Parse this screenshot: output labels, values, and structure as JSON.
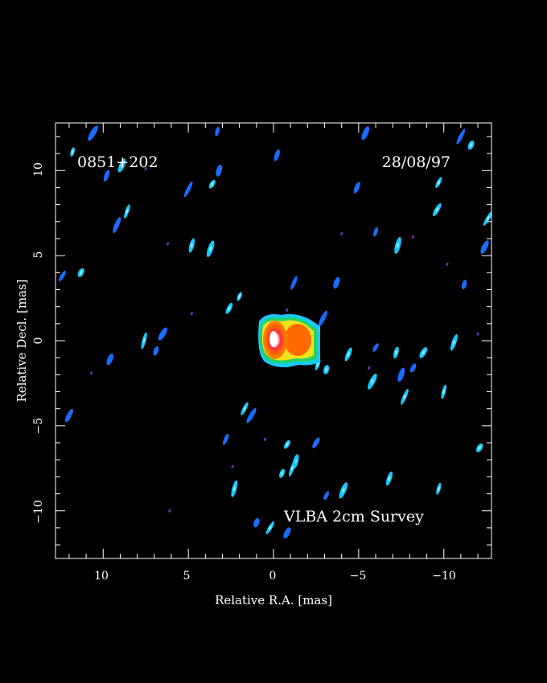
{
  "plot": {
    "source_name": "0851+202",
    "date": "28/08/97",
    "survey_label": "VLBA 2cm Survey",
    "xlabel": "Relative R.A. [mas]",
    "ylabel": "Relative Decl. [mas]",
    "x_range": [
      12.8,
      -12.8
    ],
    "y_range": [
      -12.8,
      12.8
    ],
    "x_ticks": [
      {
        "value": 10,
        "label": "10"
      },
      {
        "value": 5,
        "label": "5"
      },
      {
        "value": 0,
        "label": "0"
      },
      {
        "value": -5,
        "label": "−5"
      },
      {
        "value": -10,
        "label": "−10"
      }
    ],
    "y_ticks": [
      {
        "value": 10,
        "label": "10"
      },
      {
        "value": 5,
        "label": "5"
      },
      {
        "value": 0,
        "label": "0"
      },
      {
        "value": -5,
        "label": "−5"
      },
      {
        "value": -10,
        "label": "−10"
      }
    ],
    "colors": {
      "background": "#000000",
      "frame": "#ffffff",
      "noise_blue": "#1a6cff",
      "noise_cyan": "#19c8ff",
      "noise_purple": "#7a2cc8",
      "core_green": "#22d36a",
      "core_yellow": "#f5e21c",
      "core_orange": "#ff6a00",
      "core_white": "#ffffff"
    },
    "noise_blobs": [
      {
        "x": 11.8,
        "y": 11.1,
        "c": "cyan"
      },
      {
        "x": 9.8,
        "y": 9.7,
        "c": "blue"
      },
      {
        "x": 8.9,
        "y": 10.3,
        "c": "cyan"
      },
      {
        "x": 5.0,
        "y": 8.9,
        "c": "blue"
      },
      {
        "x": 3.6,
        "y": 9.2,
        "c": "cyan"
      },
      {
        "x": 3.2,
        "y": 10.0,
        "c": "blue"
      },
      {
        "x": 8.6,
        "y": 7.6,
        "c": "cyan"
      },
      {
        "x": 9.2,
        "y": 6.8,
        "c": "blue"
      },
      {
        "x": 11.3,
        "y": 4.0,
        "c": "cyan"
      },
      {
        "x": 12.4,
        "y": 3.8,
        "c": "blue"
      },
      {
        "x": 4.8,
        "y": 5.6,
        "c": "cyan"
      },
      {
        "x": 3.7,
        "y": 5.4,
        "c": "cyan"
      },
      {
        "x": 2.0,
        "y": 2.6,
        "c": "cyan"
      },
      {
        "x": 2.6,
        "y": 1.9,
        "c": "cyan"
      },
      {
        "x": 6.5,
        "y": 0.4,
        "c": "blue"
      },
      {
        "x": 7.6,
        "y": 0.0,
        "c": "cyan"
      },
      {
        "x": 6.9,
        "y": -0.6,
        "c": "blue"
      },
      {
        "x": 9.6,
        "y": -1.1,
        "c": "blue"
      },
      {
        "x": 1.7,
        "y": -4.0,
        "c": "cyan"
      },
      {
        "x": 1.3,
        "y": -4.4,
        "c": "blue"
      },
      {
        "x": -3.1,
        "y": -1.7,
        "c": "cyan"
      },
      {
        "x": -2.6,
        "y": -1.4,
        "c": "cyan"
      },
      {
        "x": -4.4,
        "y": -0.8,
        "c": "cyan"
      },
      {
        "x": -5.8,
        "y": -2.4,
        "c": "cyan"
      },
      {
        "x": -6.0,
        "y": -0.4,
        "c": "blue"
      },
      {
        "x": -7.2,
        "y": -0.7,
        "c": "cyan"
      },
      {
        "x": -7.5,
        "y": -2.0,
        "c": "blue"
      },
      {
        "x": -7.7,
        "y": -3.3,
        "c": "cyan"
      },
      {
        "x": -8.2,
        "y": -1.6,
        "c": "blue"
      },
      {
        "x": -8.8,
        "y": -0.7,
        "c": "cyan"
      },
      {
        "x": -10.0,
        "y": -3.0,
        "c": "cyan"
      },
      {
        "x": -10.6,
        "y": -0.1,
        "c": "cyan"
      },
      {
        "x": -11.6,
        "y": 11.5,
        "c": "cyan"
      },
      {
        "x": -9.7,
        "y": 9.3,
        "c": "cyan"
      },
      {
        "x": -9.6,
        "y": 7.7,
        "c": "cyan"
      },
      {
        "x": -7.3,
        "y": 5.6,
        "c": "cyan"
      },
      {
        "x": -6.0,
        "y": 6.4,
        "c": "blue"
      },
      {
        "x": -4.9,
        "y": 9.0,
        "c": "blue"
      },
      {
        "x": -12.4,
        "y": 5.5,
        "c": "blue"
      },
      {
        "x": -12.6,
        "y": 7.2,
        "c": "cyan"
      },
      {
        "x": -11.2,
        "y": 3.3,
        "c": "blue"
      },
      {
        "x": -3.7,
        "y": 3.4,
        "c": "blue"
      },
      {
        "x": -1.2,
        "y": 3.4,
        "c": "blue"
      },
      {
        "x": -2.9,
        "y": 1.3,
        "c": "blue"
      },
      {
        "x": -12.1,
        "y": -6.3,
        "c": "cyan"
      },
      {
        "x": -9.7,
        "y": -8.7,
        "c": "cyan"
      },
      {
        "x": -6.8,
        "y": -8.1,
        "c": "cyan"
      },
      {
        "x": -4.1,
        "y": -8.8,
        "c": "cyan"
      },
      {
        "x": -3.1,
        "y": -9.1,
        "c": "blue"
      },
      {
        "x": -2.5,
        "y": -6.0,
        "c": "blue"
      },
      {
        "x": -1.3,
        "y": -7.1,
        "c": "cyan"
      },
      {
        "x": -1.1,
        "y": -7.5,
        "c": "cyan"
      },
      {
        "x": -0.5,
        "y": -7.8,
        "c": "cyan"
      },
      {
        "x": -0.8,
        "y": -11.3,
        "c": "blue"
      },
      {
        "x": 0.2,
        "y": -11.0,
        "c": "cyan"
      },
      {
        "x": 2.3,
        "y": -8.7,
        "c": "cyan"
      },
      {
        "x": 1.0,
        "y": -10.7,
        "c": "blue"
      },
      {
        "x": 2.8,
        "y": -5.8,
        "c": "blue"
      },
      {
        "x": 12.0,
        "y": -4.4,
        "c": "blue"
      },
      {
        "x": 10.6,
        "y": 12.2,
        "c": "blue"
      },
      {
        "x": 3.3,
        "y": 12.3,
        "c": "blue"
      },
      {
        "x": -0.2,
        "y": 10.9,
        "c": "blue"
      },
      {
        "x": -5.4,
        "y": 12.2,
        "c": "blue"
      },
      {
        "x": -11.0,
        "y": 12.0,
        "c": "blue"
      },
      {
        "x": -0.8,
        "y": -6.1,
        "c": "cyan"
      },
      {
        "x": 0.5,
        "y": -5.8,
        "c": "purple"
      },
      {
        "x": 7.5,
        "y": 10.1,
        "c": "purple"
      },
      {
        "x": 6.2,
        "y": 5.7,
        "c": "purple"
      },
      {
        "x": 10.7,
        "y": -1.9,
        "c": "purple"
      },
      {
        "x": 4.8,
        "y": 1.6,
        "c": "purple"
      },
      {
        "x": -5.6,
        "y": -1.6,
        "c": "purple"
      },
      {
        "x": -8.2,
        "y": 6.1,
        "c": "purple"
      },
      {
        "x": -10.2,
        "y": 4.5,
        "c": "purple"
      },
      {
        "x": -4.0,
        "y": 6.3,
        "c": "purple"
      },
      {
        "x": 2.4,
        "y": -7.4,
        "c": "purple"
      },
      {
        "x": -12.0,
        "y": 0.4,
        "c": "purple"
      },
      {
        "x": 6.1,
        "y": -10.0,
        "c": "purple"
      },
      {
        "x": -0.8,
        "y": 1.8,
        "c": "purple"
      }
    ]
  }
}
